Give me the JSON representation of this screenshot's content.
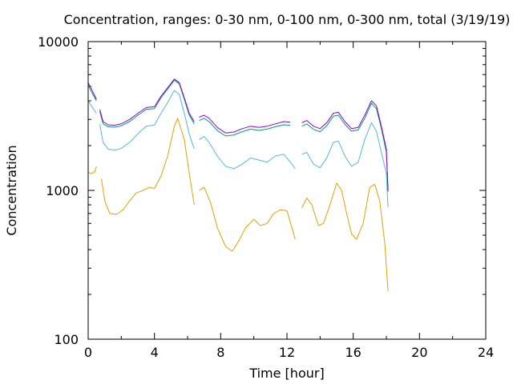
{
  "chart_data": {
    "type": "line",
    "title": "Concentration, ranges: 0-30 nm, 0-100 nm, 0-300 nm, total (3/19/19)",
    "xlabel": "Time [hour]",
    "ylabel": "Concentration",
    "xlim": [
      0,
      24
    ],
    "ylim": [
      100,
      10000
    ],
    "yscale": "log",
    "grid": false,
    "xticks": [
      "0",
      "4",
      "8",
      "12",
      "16",
      "20",
      "24"
    ],
    "yticks": [
      "100",
      "1000",
      "10000"
    ],
    "series": [
      {
        "color": "#9400d3",
        "segments": [
          [
            [
              0,
              5300
            ],
            [
              0.2,
              4800
            ],
            [
              0.5,
              4100
            ]
          ],
          [
            [
              0.7,
              3500
            ],
            [
              0.9,
              2900
            ],
            [
              1.2,
              2760
            ],
            [
              1.6,
              2740
            ],
            [
              2.0,
              2800
            ],
            [
              2.5,
              3000
            ],
            [
              3.0,
              3300
            ],
            [
              3.5,
              3600
            ],
            [
              4.0,
              3650
            ],
            [
              4.4,
              4300
            ],
            [
              4.8,
              4900
            ],
            [
              5.2,
              5600
            ],
            [
              5.5,
              5300
            ],
            [
              5.8,
              4200
            ],
            [
              6.1,
              3300
            ],
            [
              6.4,
              2900
            ]
          ],
          [
            [
              6.7,
              3100
            ],
            [
              7.0,
              3200
            ],
            [
              7.3,
              3050
            ],
            [
              7.8,
              2650
            ],
            [
              8.3,
              2430
            ],
            [
              8.8,
              2470
            ],
            [
              9.3,
              2600
            ],
            [
              9.8,
              2700
            ],
            [
              10.3,
              2650
            ],
            [
              10.8,
              2700
            ],
            [
              11.3,
              2800
            ],
            [
              11.8,
              2900
            ],
            [
              12.2,
              2880
            ]
          ],
          [
            [
              12.9,
              2850
            ],
            [
              13.2,
              2950
            ],
            [
              13.6,
              2700
            ],
            [
              14.0,
              2600
            ],
            [
              14.4,
              2850
            ],
            [
              14.8,
              3300
            ],
            [
              15.1,
              3350
            ],
            [
              15.5,
              2900
            ],
            [
              15.9,
              2600
            ],
            [
              16.3,
              2650
            ],
            [
              16.7,
              3200
            ],
            [
              17.1,
              4000
            ],
            [
              17.4,
              3700
            ],
            [
              17.7,
              2700
            ],
            [
              18.0,
              1900
            ],
            [
              18.1,
              1000
            ]
          ]
        ]
      },
      {
        "color": "#009e73",
        "segments": [
          [
            [
              0,
              5100
            ],
            [
              0.2,
              4600
            ],
            [
              0.5,
              4000
            ]
          ],
          [
            [
              0.7,
              3400
            ],
            [
              0.9,
              2800
            ],
            [
              1.2,
              2680
            ],
            [
              1.6,
              2660
            ],
            [
              2.0,
              2720
            ],
            [
              2.5,
              2900
            ],
            [
              3.0,
              3200
            ],
            [
              3.5,
              3500
            ],
            [
              4.0,
              3550
            ],
            [
              4.4,
              4200
            ],
            [
              4.8,
              4800
            ],
            [
              5.2,
              5500
            ],
            [
              5.5,
              5200
            ],
            [
              5.8,
              4100
            ],
            [
              6.1,
              3200
            ],
            [
              6.4,
              2800
            ]
          ],
          [
            [
              6.7,
              2950
            ],
            [
              7.0,
              3050
            ],
            [
              7.3,
              2900
            ],
            [
              7.8,
              2520
            ],
            [
              8.3,
              2320
            ],
            [
              8.8,
              2360
            ],
            [
              9.3,
              2480
            ],
            [
              9.8,
              2580
            ],
            [
              10.3,
              2530
            ],
            [
              10.8,
              2580
            ],
            [
              11.3,
              2680
            ],
            [
              11.8,
              2760
            ],
            [
              12.2,
              2740
            ]
          ],
          [
            [
              12.9,
              2700
            ],
            [
              13.2,
              2800
            ],
            [
              13.6,
              2570
            ],
            [
              14.0,
              2480
            ],
            [
              14.4,
              2720
            ],
            [
              14.8,
              3150
            ],
            [
              15.1,
              3200
            ],
            [
              15.5,
              2780
            ],
            [
              15.9,
              2500
            ],
            [
              16.3,
              2550
            ],
            [
              16.7,
              3050
            ],
            [
              17.1,
              3850
            ],
            [
              17.4,
              3550
            ],
            [
              17.7,
              2600
            ],
            [
              18.0,
              1800
            ],
            [
              18.1,
              980
            ]
          ]
        ]
      },
      {
        "color": "#56b4e9",
        "segments": [
          [
            [
              0,
              4000
            ],
            [
              0.2,
              3700
            ],
            [
              0.5,
              3300
            ]
          ],
          [
            [
              0.7,
              2800
            ],
            [
              0.9,
              2100
            ],
            [
              1.2,
              1900
            ],
            [
              1.6,
              1860
            ],
            [
              2.0,
              1920
            ],
            [
              2.5,
              2100
            ],
            [
              3.0,
              2400
            ],
            [
              3.5,
              2700
            ],
            [
              4.0,
              2750
            ],
            [
              4.4,
              3300
            ],
            [
              4.8,
              3900
            ],
            [
              5.2,
              4700
            ],
            [
              5.5,
              4400
            ],
            [
              5.8,
              3300
            ],
            [
              6.1,
              2400
            ],
            [
              6.4,
              1900
            ]
          ],
          [
            [
              6.7,
              2200
            ],
            [
              7.0,
              2300
            ],
            [
              7.3,
              2100
            ],
            [
              7.8,
              1700
            ],
            [
              8.3,
              1450
            ],
            [
              8.8,
              1400
            ],
            [
              9.3,
              1500
            ],
            [
              9.8,
              1650
            ],
            [
              10.3,
              1600
            ],
            [
              10.8,
              1550
            ],
            [
              11.3,
              1700
            ],
            [
              11.8,
              1750
            ],
            [
              12.2,
              1550
            ],
            [
              12.5,
              1400
            ]
          ],
          [
            [
              12.9,
              1750
            ],
            [
              13.2,
              1800
            ],
            [
              13.6,
              1500
            ],
            [
              14.0,
              1420
            ],
            [
              14.4,
              1650
            ],
            [
              14.8,
              2100
            ],
            [
              15.1,
              2150
            ],
            [
              15.5,
              1700
            ],
            [
              15.9,
              1450
            ],
            [
              16.3,
              1550
            ],
            [
              16.7,
              2200
            ],
            [
              17.1,
              2850
            ],
            [
              17.4,
              2500
            ],
            [
              17.7,
              1800
            ],
            [
              18.0,
              1300
            ],
            [
              18.1,
              770
            ]
          ]
        ]
      },
      {
        "color": "#e69f00",
        "segments": [
          [
            [
              0,
              1320
            ],
            [
              0.2,
              1300
            ],
            [
              0.4,
              1330
            ],
            [
              0.5,
              1450
            ]
          ],
          [
            [
              0.8,
              1200
            ],
            [
              1.0,
              850
            ],
            [
              1.3,
              700
            ],
            [
              1.7,
              690
            ],
            [
              2.1,
              740
            ],
            [
              2.5,
              850
            ],
            [
              2.9,
              960
            ],
            [
              3.3,
              1000
            ],
            [
              3.7,
              1050
            ],
            [
              4.0,
              1030
            ],
            [
              4.4,
              1250
            ],
            [
              4.8,
              1700
            ],
            [
              5.2,
              2700
            ],
            [
              5.4,
              3050
            ],
            [
              5.8,
              2200
            ],
            [
              6.1,
              1300
            ],
            [
              6.4,
              800
            ]
          ],
          [
            [
              6.7,
              1000
            ],
            [
              7.0,
              1050
            ],
            [
              7.4,
              820
            ],
            [
              7.8,
              560
            ],
            [
              8.3,
              420
            ],
            [
              8.7,
              390
            ],
            [
              9.1,
              460
            ],
            [
              9.5,
              560
            ],
            [
              10.0,
              640
            ],
            [
              10.4,
              580
            ],
            [
              10.8,
              600
            ],
            [
              11.2,
              700
            ],
            [
              11.6,
              740
            ],
            [
              12.0,
              730
            ],
            [
              12.3,
              560
            ],
            [
              12.5,
              470
            ]
          ],
          [
            [
              12.9,
              760
            ],
            [
              13.2,
              890
            ],
            [
              13.5,
              800
            ],
            [
              13.9,
              580
            ],
            [
              14.2,
              600
            ],
            [
              14.6,
              800
            ],
            [
              15.0,
              1120
            ],
            [
              15.3,
              1000
            ],
            [
              15.6,
              700
            ],
            [
              15.9,
              510
            ],
            [
              16.2,
              470
            ],
            [
              16.6,
              600
            ],
            [
              17.0,
              1050
            ],
            [
              17.3,
              1100
            ],
            [
              17.6,
              850
            ],
            [
              17.9,
              450
            ],
            [
              18.1,
              210
            ]
          ]
        ]
      }
    ]
  }
}
